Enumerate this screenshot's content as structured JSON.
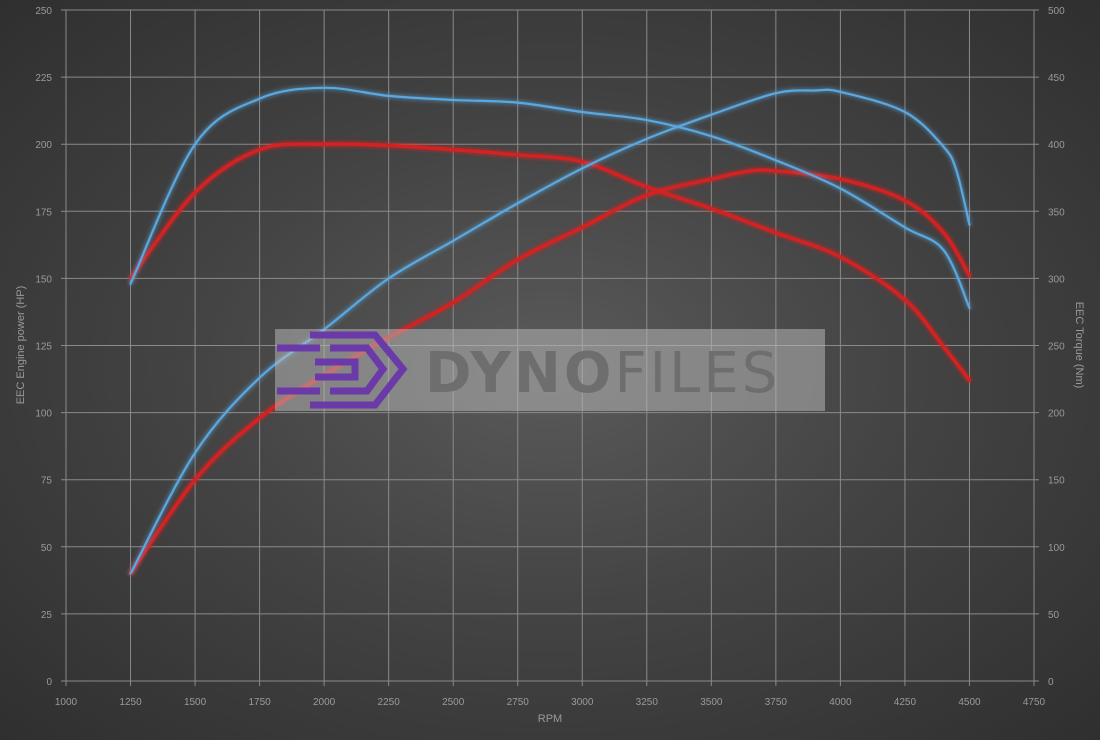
{
  "chart_data": {
    "type": "line",
    "xlabel": "RPM",
    "ylabel_left": "EEC Engine power (HP)",
    "ylabel_right": "EEC Torque (Nm)",
    "xlim": [
      1000,
      4750
    ],
    "ylim_left": [
      0,
      250
    ],
    "ylim_right": [
      0,
      500
    ],
    "xticks": [
      1000,
      1250,
      1500,
      1750,
      2000,
      2250,
      2500,
      2750,
      3000,
      3250,
      3500,
      3750,
      4000,
      4250,
      4500,
      4750
    ],
    "yticks_left": [
      0,
      25,
      50,
      75,
      100,
      125,
      150,
      175,
      200,
      225,
      250
    ],
    "yticks_right": [
      0,
      50,
      100,
      150,
      200,
      250,
      300,
      350,
      400,
      450,
      500
    ],
    "grid": true,
    "series": [
      {
        "axis": "right",
        "color": "#5aa8e0",
        "rpm": [
          1250,
          1500,
          1750,
          2000,
          2250,
          2500,
          2750,
          3000,
          3250,
          3500,
          3750,
          4000,
          4250,
          4400,
          4500
        ],
        "values": [
          296,
          400,
          434,
          442,
          436,
          433,
          431,
          424,
          418,
          406,
          388,
          367,
          338,
          321,
          278
        ]
      },
      {
        "axis": "left",
        "color": "#5aa8e0",
        "rpm": [
          1250,
          1500,
          1750,
          2000,
          2250,
          2500,
          2750,
          3000,
          3250,
          3500,
          3750,
          3900,
          4000,
          4250,
          4400,
          4450,
          4500
        ],
        "values": [
          40,
          85,
          113,
          131,
          150,
          164,
          178,
          191,
          202,
          211,
          219,
          220,
          219.5,
          212,
          199,
          190,
          170
        ]
      },
      {
        "axis": "right",
        "color": "#d42020",
        "rpm": [
          1250,
          1500,
          1750,
          2000,
          2250,
          2500,
          2750,
          3000,
          3250,
          3500,
          3750,
          4000,
          4250,
          4400,
          4500
        ],
        "values": [
          300,
          364,
          396,
          400,
          399,
          396,
          392,
          387,
          368,
          352,
          334,
          316,
          284,
          249,
          224
        ]
      },
      {
        "axis": "left",
        "color": "#d42020",
        "rpm": [
          1250,
          1500,
          1750,
          2000,
          2250,
          2500,
          2750,
          3000,
          3250,
          3500,
          3650,
          3750,
          4000,
          4250,
          4400,
          4500
        ],
        "values": [
          40,
          75,
          98,
          114,
          128,
          141,
          157,
          169,
          181,
          187,
          190,
          190,
          187,
          179,
          167,
          151
        ]
      }
    ]
  },
  "watermark": "DynoFiles",
  "watermark_bold": "DYNO",
  "watermark_light": "FILES",
  "colors": {
    "tuned": "#5aa8e0",
    "stock": "#d42020",
    "grid": "#8a8a8a"
  }
}
